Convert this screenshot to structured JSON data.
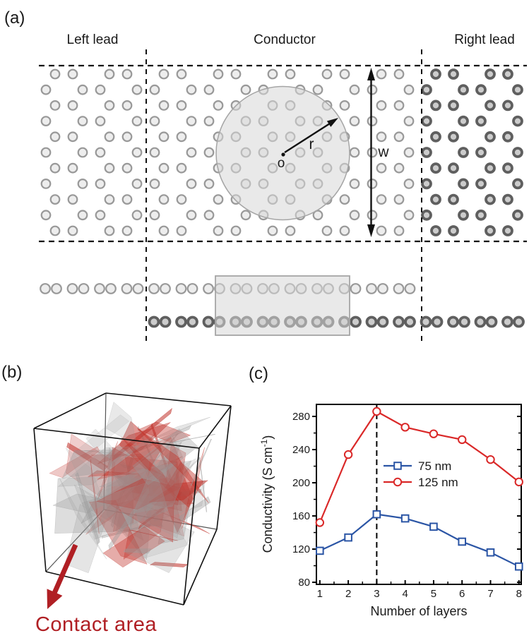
{
  "figure": {
    "panel_a": {
      "label": "(a)",
      "left_lead": "Left lead",
      "conductor": "Conductor",
      "right_lead": "Right lead",
      "origin_label": "o",
      "radius_label": "r",
      "width_label": "w"
    },
    "panel_b": {
      "label": "(b)",
      "caption": "Contact area"
    },
    "panel_c": {
      "label": "(c)"
    }
  },
  "colors": {
    "atom_light_fill": "#ededed",
    "atom_light_ring": "#999999",
    "atom_dark_fill": "#cccccc",
    "atom_dark_ring": "#5f5f5f",
    "highlight_fill": "#d7d7d7",
    "highlight_edge": "#a5a5a5",
    "dash_black": "#111111",
    "contact_red": "#b01f24",
    "flake_gray": "#9a9a9a",
    "flake_red": "#c03028",
    "series_blue": "#2b55a5",
    "series_red": "#da2828"
  },
  "chart_data": {
    "type": "line",
    "title": "",
    "x": [
      1,
      2,
      3,
      4,
      5,
      6,
      7,
      8
    ],
    "series": [
      {
        "name": "75 nm",
        "marker": "square",
        "color_key": "series_blue",
        "values": [
          118,
          134,
          162,
          157,
          147,
          129,
          116,
          99
        ]
      },
      {
        "name": "125 nm",
        "marker": "circle",
        "color_key": "series_red",
        "values": [
          152,
          234,
          286,
          267,
          259,
          252,
          228,
          201
        ]
      }
    ],
    "xlabel": "Number of layers",
    "ylabel": "Conductivity (S cm⁻¹)",
    "ylabel_parts": {
      "main": "Conductivity (S cm",
      "sup": "-1",
      "close": ")"
    },
    "xticks": [
      1,
      2,
      3,
      4,
      5,
      6,
      7,
      8
    ],
    "xticks_minor": [
      1.5,
      2.5,
      3.5,
      4.5,
      5.5,
      6.5,
      7.5
    ],
    "yticks": [
      80,
      120,
      160,
      200,
      240,
      280
    ],
    "yticks_minor": [
      100,
      140,
      180,
      220,
      260
    ],
    "xlim": [
      0.88,
      8.08
    ],
    "ylim": [
      77.5,
      294.5
    ],
    "dashed_guide_x": 3,
    "legend_position": "center",
    "grid": false
  }
}
